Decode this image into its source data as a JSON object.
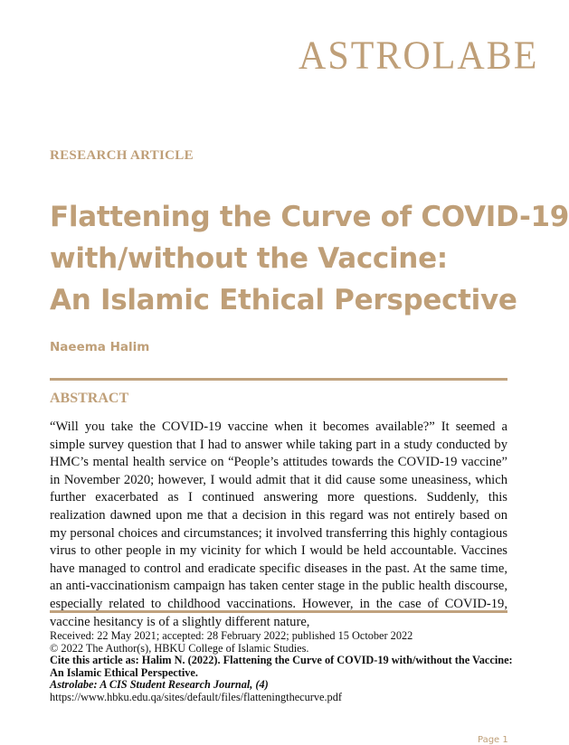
{
  "logo": "ASTROLABE",
  "article_type": "RESEARCH ARTICLE",
  "title_lines": [
    "Flattening the Curve of COVID-19",
    "with/without the Vaccine:",
    "An Islamic Ethical Perspective"
  ],
  "author": "Naeema Halim",
  "abstract": {
    "heading": "ABSTRACT",
    "text": "“Will you take the COVID-19 vaccine when it becomes available?” It seemed a simple survey question that I had to answer while taking part in a study conducted by HMC’s mental health service on “People’s attitudes towards the COVID-19 vaccine” in November 2020; however, I would admit that it did cause some uneasiness, which further exacerbated as I continued answering more questions. Suddenly, this realization dawned upon me that a decision in this regard was not entirely based on my personal choices and circumstances; it involved transferring this highly contagious virus to other people in my vicinity for which I would be held accountable. Vaccines have managed to control and eradicate specific diseases in the past. At the same time, an anti-vaccinationism campaign has taken center stage in the public health discourse, especially related to childhood vaccinations. However, in the case of COVID-19, vaccine hesitancy is of a slightly different nature,"
  },
  "footer": {
    "dates": "Received: 22 May 2021; accepted: 28 February 2022; published 15 October 2022",
    "copyright": "© 2022 The Author(s), HBKU College of Islamic Studies.",
    "cite_line1": "Cite this article as: Halim N. (2022). Flattening the Curve of COVID-19 with/without the Vaccine:",
    "cite_line2": "An Islamic Ethical Perspective.",
    "journal": "Astrolabe: A CIS Student Research Journal, (4)",
    "url": "https://www.hbku.edu.qa/sites/default/files/flatteningthecurve.pdf"
  },
  "page_label": "Page 1",
  "colors": {
    "accent": "#bf9f78",
    "text": "#111111"
  }
}
